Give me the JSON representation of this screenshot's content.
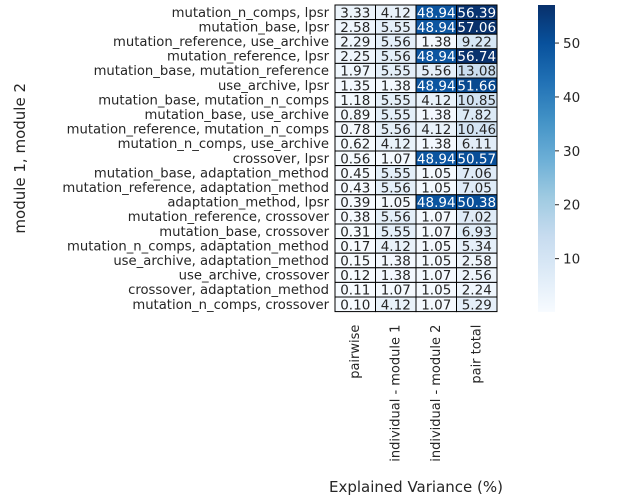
{
  "chart_data": {
    "type": "heatmap",
    "title": "",
    "xlabel": "Explained Variance (%)",
    "ylabel": "module 1, module 2",
    "columns": [
      "pairwise",
      "individual - module 1",
      "individual - module 2",
      "pair total"
    ],
    "rows": [
      "mutation_n_comps, lpsr",
      "mutation_base, lpsr",
      "mutation_reference, use_archive",
      "mutation_reference, lpsr",
      "mutation_base, mutation_reference",
      "use_archive, lpsr",
      "mutation_base, mutation_n_comps",
      "mutation_base, use_archive",
      "mutation_reference, mutation_n_comps",
      "mutation_n_comps, use_archive",
      "crossover, lpsr",
      "mutation_base, adaptation_method",
      "mutation_reference, adaptation_method",
      "adaptation_method, lpsr",
      "mutation_reference, crossover",
      "mutation_base, crossover",
      "mutation_n_comps, adaptation_method",
      "use_archive, adaptation_method",
      "use_archive, crossover",
      "crossover, adaptation_method",
      "mutation_n_comps, crossover"
    ],
    "values": [
      [
        3.33,
        4.12,
        48.94,
        56.39
      ],
      [
        2.58,
        5.55,
        48.94,
        57.06
      ],
      [
        2.29,
        5.56,
        1.38,
        9.22
      ],
      [
        2.25,
        5.56,
        48.94,
        56.74
      ],
      [
        1.97,
        5.55,
        5.56,
        13.08
      ],
      [
        1.35,
        1.38,
        48.94,
        51.66
      ],
      [
        1.18,
        5.55,
        4.12,
        10.85
      ],
      [
        0.89,
        5.55,
        1.38,
        7.82
      ],
      [
        0.78,
        5.56,
        4.12,
        10.46
      ],
      [
        0.62,
        4.12,
        1.38,
        6.11
      ],
      [
        0.56,
        1.07,
        48.94,
        50.57
      ],
      [
        0.45,
        5.55,
        1.05,
        7.06
      ],
      [
        0.43,
        5.56,
        1.05,
        7.05
      ],
      [
        0.39,
        1.05,
        48.94,
        50.38
      ],
      [
        0.38,
        5.56,
        1.07,
        7.02
      ],
      [
        0.31,
        5.55,
        1.07,
        6.93
      ],
      [
        0.17,
        4.12,
        1.05,
        5.34
      ],
      [
        0.15,
        1.38,
        1.05,
        2.58
      ],
      [
        0.12,
        1.38,
        1.07,
        2.56
      ],
      [
        0.11,
        1.07,
        1.05,
        2.24
      ],
      [
        0.1,
        4.12,
        1.07,
        5.29
      ]
    ],
    "value_format": "2 decimals",
    "colormap": "Blues",
    "color_low": "#f7fbff",
    "color_high": "#08306b",
    "vmin": 0.1,
    "vmax": 57.06,
    "colorbar_ticks": [
      10,
      20,
      30,
      40,
      50
    ],
    "cell_border_color": "#000000",
    "grid": true,
    "legend": "colorbar right"
  }
}
